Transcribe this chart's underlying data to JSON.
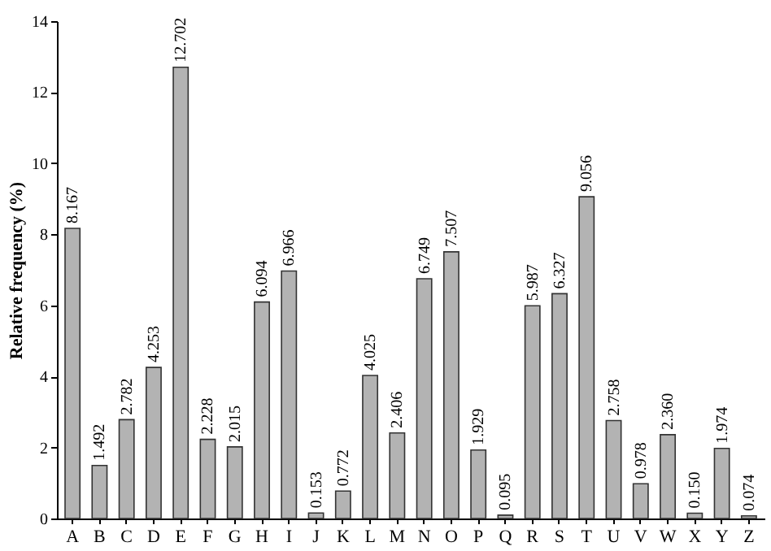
{
  "chart_data": {
    "type": "bar",
    "ylabel": "Relative frequency (%)",
    "categories": [
      "A",
      "B",
      "C",
      "D",
      "E",
      "F",
      "G",
      "H",
      "I",
      "J",
      "K",
      "L",
      "M",
      "N",
      "O",
      "P",
      "Q",
      "R",
      "S",
      "T",
      "U",
      "V",
      "W",
      "X",
      "Y",
      "Z"
    ],
    "values": [
      8.167,
      1.492,
      2.782,
      4.253,
      12.702,
      2.228,
      2.015,
      6.094,
      6.966,
      0.153,
      0.772,
      4.025,
      2.406,
      6.749,
      7.507,
      1.929,
      0.095,
      5.987,
      6.327,
      9.056,
      2.758,
      0.978,
      2.36,
      0.15,
      1.974,
      0.074
    ],
    "value_labels": [
      "8.167",
      "1.492",
      "2.782",
      "4.253",
      "12.702",
      "2.228",
      "2.015",
      "6.094",
      "6.966",
      "0.153",
      "0.772",
      "4.025",
      "2.406",
      "6.749",
      "7.507",
      "1.929",
      "0.095",
      "5.987",
      "6.327",
      "9.056",
      "2.758",
      "0.978",
      "2.360",
      "0.150",
      "1.974",
      "0.074"
    ],
    "color": "#b3b3b3",
    "ylim": [
      0,
      14
    ],
    "yticks": [
      0,
      2,
      4,
      6,
      8,
      10,
      12,
      14
    ],
    "grid": false
  }
}
